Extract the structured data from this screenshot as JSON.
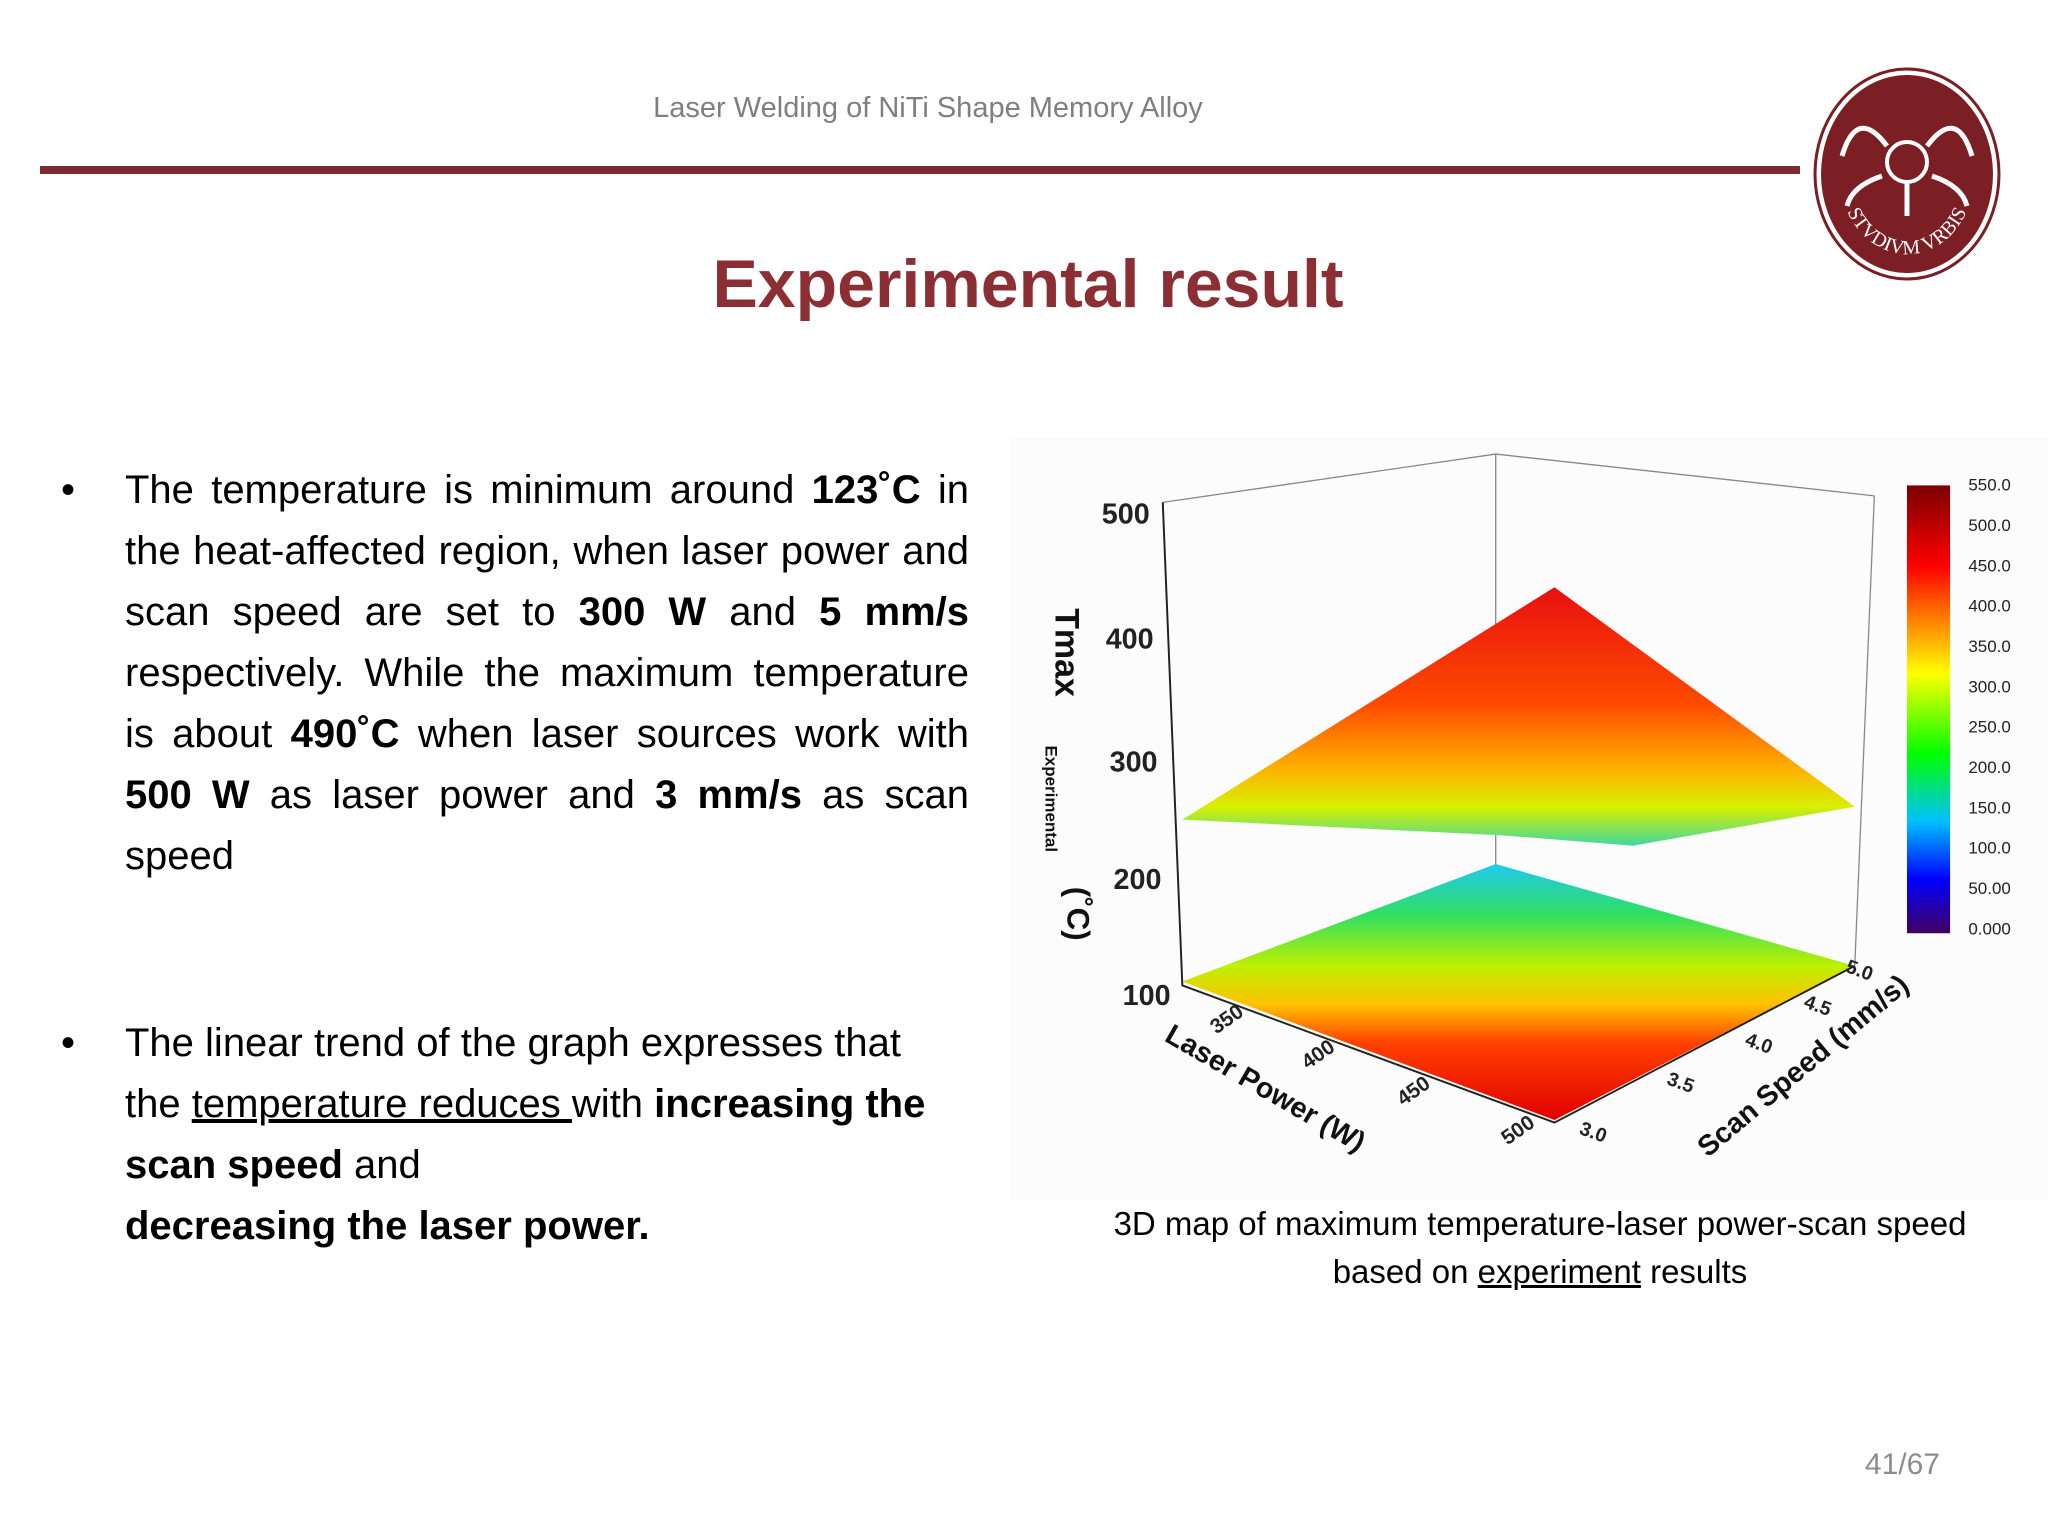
{
  "header": {
    "title": "Laser Welding of NiTi Shape Memory Alloy"
  },
  "slide": {
    "title": "Experimental result",
    "page": "41/67"
  },
  "logo": {
    "text": "STVDIVM VRBIS"
  },
  "bullets": [
    [
      "The temperature is minimum around ",
      "123˚C",
      " in the heat-affected region, when laser power and scan speed are set to ",
      "300 W",
      " and ",
      "5 mm/s",
      " respectively. While the maximum temperature is about ",
      "490˚C",
      " when laser sources work with ",
      "500 W",
      " as laser power and ",
      "3 mm/s",
      " as scan speed"
    ],
    [
      "The linear trend of the graph expresses that the ",
      "temperature reduces ",
      "with ",
      "increasing the scan speed",
      " and ",
      "decreasing the laser power."
    ]
  ],
  "figure": {
    "z_label": "Tmax",
    "z_label_sub": "Experimental",
    "z_unit": "(˚C)",
    "z_ticks": [
      "500",
      "400",
      "300",
      "200",
      "100"
    ],
    "x_label": "Laser Power (W)",
    "x_ticks": [
      "350",
      "400",
      "450",
      "500"
    ],
    "y_label": "Scan Speed (mm/s)",
    "y_ticks": [
      "3.0",
      "3.5",
      "4.0",
      "4.5",
      "5.0"
    ],
    "colorbar_ticks": [
      "550.0",
      "500.0",
      "450.0",
      "400.0",
      "350.0",
      "300.0",
      "250.0",
      "200.0",
      "150.0",
      "100.0",
      "50.00",
      "0.000"
    ],
    "caption": [
      "3D map of maximum temperature-laser power-scan speed",
      "based on ",
      "experiment",
      " results"
    ]
  }
}
